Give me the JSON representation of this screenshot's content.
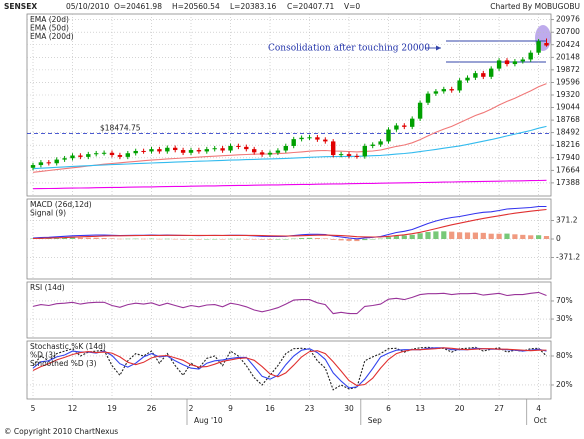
{
  "chart_data": [
    {
      "type": "candlestick",
      "title": "SENSEX",
      "header": [
        "05/10/2010",
        "O=20461.98",
        "H=20560.54",
        "L=20383.16",
        "C=20407.71",
        "V=0"
      ],
      "credit": "Charted By MOBUGOBU",
      "footer": "© Copyright 2010 ChartNexus",
      "categories": [
        "5",
        null,
        null,
        null,
        null,
        "12",
        null,
        null,
        null,
        null,
        "19",
        null,
        null,
        null,
        null,
        "26",
        null,
        null,
        null,
        null,
        "2",
        null,
        null,
        null,
        null,
        "9",
        null,
        null,
        null,
        null,
        "16",
        null,
        null,
        null,
        null,
        "23",
        null,
        null,
        null,
        null,
        "30",
        null,
        null,
        null,
        null,
        "6",
        null,
        null,
        null,
        "13",
        null,
        null,
        null,
        null,
        "20",
        null,
        null,
        null,
        null,
        "27",
        null,
        null,
        null,
        null,
        "4",
        null
      ],
      "months": [
        null,
        null,
        null,
        null,
        null,
        null,
        null,
        null,
        null,
        null,
        null,
        null,
        null,
        null,
        null,
        null,
        null,
        null,
        null,
        null,
        "Aug '10",
        null,
        null,
        null,
        null,
        null,
        null,
        null,
        null,
        null,
        null,
        null,
        null,
        null,
        null,
        null,
        null,
        null,
        null,
        null,
        null,
        null,
        "Sep",
        null,
        null,
        null,
        null,
        null,
        null,
        null,
        null,
        null,
        null,
        null,
        null,
        null,
        null,
        null,
        null,
        null,
        null,
        null,
        null,
        "Oct",
        null,
        null
      ],
      "open": [
        17720,
        17780,
        17840,
        17820,
        17900,
        17930,
        17990,
        17960,
        18020,
        18040,
        18050,
        18000,
        17960,
        18040,
        18090,
        18080,
        18130,
        18080,
        18160,
        18110,
        18050,
        18110,
        18080,
        18130,
        18150,
        18100,
        18200,
        18180,
        18130,
        18060,
        18010,
        18050,
        18100,
        18200,
        18350,
        18380,
        18390,
        18340,
        18300,
        18000,
        18020,
        17980,
        17970,
        18200,
        18230,
        18300,
        18560,
        18650,
        18620,
        18800,
        19150,
        19350,
        19400,
        19450,
        19420,
        19640,
        19700,
        19800,
        19720,
        19900,
        20080,
        20000,
        20060,
        20100,
        20250,
        20461.98
      ],
      "high": [
        17830,
        17890,
        17890,
        17950,
        17980,
        18040,
        18040,
        18070,
        18090,
        18100,
        18100,
        18050,
        18090,
        18140,
        18140,
        18180,
        18180,
        18210,
        18210,
        18160,
        18160,
        18160,
        18180,
        18200,
        18200,
        18250,
        18250,
        18230,
        18180,
        18110,
        18100,
        18150,
        18250,
        18400,
        18430,
        18440,
        18440,
        18390,
        18350,
        18070,
        18070,
        18030,
        18250,
        18280,
        18350,
        18610,
        18700,
        18700,
        18850,
        19200,
        19400,
        19450,
        19500,
        19500,
        19690,
        19750,
        19850,
        19850,
        19950,
        20130,
        20130,
        20110,
        20150,
        20300,
        20550,
        20560.54
      ],
      "low": [
        17670,
        17730,
        17770,
        17770,
        17850,
        17880,
        17910,
        17910,
        17970,
        17990,
        17950,
        17910,
        17910,
        17990,
        18030,
        18030,
        18030,
        18030,
        18060,
        18000,
        18000,
        18030,
        18030,
        18080,
        18050,
        18050,
        18130,
        18080,
        18010,
        17960,
        17960,
        18000,
        18050,
        18150,
        18300,
        18330,
        18290,
        18250,
        17950,
        17950,
        17930,
        17920,
        17920,
        18150,
        18180,
        18250,
        18510,
        18570,
        18570,
        18750,
        19100,
        19300,
        19350,
        19370,
        19370,
        19590,
        19650,
        19670,
        19670,
        19850,
        19950,
        19950,
        20010,
        20050,
        20200,
        20383.16
      ],
      "close": [
        17780,
        17840,
        17820,
        17900,
        17930,
        17990,
        17960,
        18020,
        18040,
        18050,
        18000,
        17960,
        18040,
        18090,
        18080,
        18130,
        18080,
        18160,
        18110,
        18050,
        18110,
        18080,
        18130,
        18150,
        18100,
        18200,
        18180,
        18130,
        18060,
        18010,
        18050,
        18100,
        18200,
        18350,
        18380,
        18390,
        18340,
        18300,
        18000,
        18020,
        17980,
        17970,
        18200,
        18230,
        18300,
        18560,
        18650,
        18620,
        18800,
        19150,
        19350,
        19400,
        19450,
        19420,
        19640,
        19700,
        19800,
        19720,
        19900,
        20080,
        20000,
        20060,
        20100,
        20250,
        20500,
        20407.71
      ],
      "up_color": "#00a000",
      "down_color": "#e00000",
      "series": [
        {
          "name": "EMA (20d)",
          "color": "#f07878",
          "values": [
            17620,
            17640,
            17660,
            17680,
            17700,
            17720,
            17740,
            17760,
            17780,
            17800,
            17815,
            17830,
            17845,
            17860,
            17875,
            17890,
            17900,
            17915,
            17925,
            17935,
            17945,
            17955,
            17965,
            17975,
            17985,
            17995,
            18005,
            18012,
            18018,
            18022,
            18026,
            18032,
            18040,
            18055,
            18070,
            18085,
            18095,
            18100,
            18090,
            18085,
            18078,
            18070,
            18080,
            18090,
            18110,
            18150,
            18190,
            18220,
            18270,
            18340,
            18420,
            18500,
            18570,
            18630,
            18710,
            18790,
            18870,
            18930,
            19010,
            19100,
            19180,
            19250,
            19330,
            19410,
            19500,
            19570
          ]
        },
        {
          "name": "EMA (50d)",
          "color": "#33bbee",
          "values": [
            17700,
            17710,
            17720,
            17730,
            17740,
            17750,
            17758,
            17766,
            17774,
            17782,
            17790,
            17797,
            17804,
            17811,
            17818,
            17825,
            17832,
            17839,
            17846,
            17852,
            17858,
            17864,
            17870,
            17876,
            17882,
            17888,
            17894,
            17900,
            17905,
            17910,
            17915,
            17920,
            17926,
            17934,
            17942,
            17950,
            17958,
            17964,
            17966,
            17968,
            17970,
            17972,
            17978,
            17985,
            17993,
            18005,
            18020,
            18035,
            18052,
            18075,
            18100,
            18125,
            18150,
            18175,
            18200,
            18235,
            18270,
            18305,
            18340,
            18380,
            18420,
            18460,
            18500,
            18540,
            18590,
            18630
          ]
        },
        {
          "name": "EMA (200d)",
          "color": "#ee00ee",
          "values": [
            17260,
            17263,
            17265,
            17268,
            17271,
            17274,
            17276,
            17279,
            17282,
            17285,
            17288,
            17290,
            17293,
            17296,
            17299,
            17301,
            17304,
            17307,
            17310,
            17312,
            17315,
            17318,
            17321,
            17323,
            17326,
            17329,
            17332,
            17334,
            17337,
            17340,
            17343,
            17345,
            17348,
            17351,
            17354,
            17356,
            17359,
            17362,
            17365,
            17367,
            17370,
            17373,
            17376,
            17378,
            17381,
            17384,
            17387,
            17390,
            17393,
            17396,
            17399,
            17402,
            17405,
            17408,
            17411,
            17414,
            17417,
            17420,
            17423,
            17426,
            17429,
            17432,
            17435,
            17438,
            17441,
            17444
          ]
        }
      ],
      "level": {
        "value": 18474.75,
        "label": "$18474.75"
      },
      "note": "Consolidation after touching 20000",
      "ylim": [
        17100,
        21100
      ],
      "yticks": [
        20976,
        20700,
        20424,
        20148,
        19872,
        19596,
        19320,
        19044,
        18768,
        18492,
        18216,
        17940,
        17664,
        17388
      ],
      "grid": true
    },
    {
      "type": "macd",
      "series": [
        {
          "name": "MACD (26d,12d)",
          "color": "#3333ee",
          "values": [
            20,
            30,
            35,
            45,
            55,
            65,
            70,
            75,
            80,
            80,
            75,
            70,
            72,
            75,
            75,
            78,
            75,
            78,
            75,
            70,
            70,
            68,
            70,
            72,
            70,
            75,
            75,
            72,
            65,
            55,
            50,
            50,
            55,
            70,
            85,
            95,
            95,
            90,
            60,
            40,
            20,
            5,
            20,
            35,
            50,
            90,
            130,
            155,
            190,
            250,
            310,
            360,
            400,
            430,
            450,
            480,
            510,
            535,
            545,
            570,
            600,
            610,
            620,
            630,
            650,
            650
          ]
        },
        {
          "name": "Signal (9)",
          "color": "#e03030",
          "values": [
            10,
            14,
            18,
            23,
            29,
            36,
            43,
            49,
            55,
            60,
            63,
            65,
            66,
            68,
            70,
            71,
            72,
            73,
            73,
            73,
            72,
            71,
            71,
            71,
            71,
            72,
            72,
            72,
            71,
            68,
            64,
            61,
            60,
            62,
            66,
            72,
            76,
            79,
            75,
            68,
            58,
            47,
            42,
            40,
            42,
            52,
            68,
            85,
            106,
            135,
            170,
            208,
            246,
            283,
            316,
            349,
            381,
            412,
            439,
            465,
            492,
            516,
            537,
            556,
            575,
            590
          ]
        }
      ],
      "histogram": {
        "up": "#77c877",
        "down": "#f09a80",
        "values": [
          10,
          16,
          17,
          22,
          26,
          29,
          27,
          26,
          25,
          20,
          12,
          5,
          6,
          7,
          5,
          7,
          3,
          5,
          2,
          -3,
          -2,
          -3,
          -1,
          1,
          -1,
          3,
          3,
          0,
          -6,
          -13,
          -14,
          -11,
          -5,
          8,
          19,
          23,
          19,
          11,
          -15,
          -28,
          -38,
          -42,
          -22,
          -5,
          8,
          38,
          62,
          70,
          84,
          115,
          140,
          152,
          154,
          147,
          134,
          131,
          129,
          123,
          106,
          105,
          108,
          94,
          83,
          74,
          75,
          60
        ]
      },
      "ylim": [
        -800,
        800
      ],
      "yticks": [
        371.2,
        0,
        -371.2
      ],
      "grid": true
    },
    {
      "type": "line",
      "series": [
        {
          "name": "RSI (14d)",
          "color": "#993399",
          "values": [
            58,
            62,
            60,
            64,
            65,
            67,
            63,
            66,
            67,
            67,
            60,
            56,
            62,
            65,
            63,
            66,
            60,
            65,
            60,
            55,
            60,
            57,
            61,
            62,
            57,
            65,
            62,
            57,
            50,
            46,
            50,
            55,
            63,
            72,
            73,
            73,
            66,
            62,
            42,
            45,
            42,
            42,
            58,
            60,
            63,
            74,
            76,
            73,
            78,
            84,
            86,
            86,
            87,
            84,
            86,
            86,
            87,
            83,
            85,
            87,
            82,
            84,
            84,
            87,
            89,
            82
          ]
        }
      ],
      "ylim": [
        -12,
        112
      ],
      "yticks": [
        {
          "value": 70,
          "label": "70%"
        },
        {
          "value": 30,
          "label": "30%"
        }
      ],
      "grid": true
    },
    {
      "type": "line",
      "series": [
        {
          "name": "Stochastic %K (14d)",
          "color": "#222222",
          "dash": "2,1.5",
          "values": [
            60,
            80,
            70,
            85,
            90,
            95,
            80,
            88,
            90,
            92,
            60,
            40,
            70,
            85,
            80,
            90,
            65,
            85,
            60,
            40,
            65,
            55,
            75,
            80,
            60,
            90,
            80,
            60,
            35,
            20,
            40,
            60,
            85,
            95,
            96,
            94,
            70,
            55,
            10,
            20,
            12,
            15,
            70,
            78,
            85,
            95,
            96,
            88,
            94,
            97,
            98,
            96,
            96,
            88,
            95,
            96,
            98,
            90,
            94,
            97,
            88,
            92,
            90,
            95,
            96,
            80
          ]
        },
        {
          "name": "%D (3)",
          "color": "#3344ee",
          "values": [
            55,
            68,
            70,
            78,
            82,
            90,
            88,
            88,
            86,
            90,
            81,
            64,
            57,
            65,
            78,
            85,
            78,
            80,
            70,
            62,
            55,
            53,
            65,
            70,
            72,
            75,
            77,
            77,
            58,
            38,
            32,
            40,
            62,
            80,
            92,
            95,
            87,
            73,
            45,
            28,
            14,
            16,
            32,
            54,
            78,
            86,
            92,
            93,
            93,
            93,
            96,
            97,
            97,
            93,
            93,
            93,
            96,
            95,
            94,
            94,
            93,
            92,
            90,
            92,
            94,
            90
          ]
        },
        {
          "name": "Smoothed %D (3)",
          "color": "#e03030",
          "values": [
            50,
            58,
            64,
            72,
            77,
            83,
            87,
            89,
            87,
            88,
            86,
            78,
            67,
            62,
            67,
            76,
            80,
            81,
            76,
            71,
            62,
            57,
            58,
            63,
            69,
            72,
            75,
            76,
            71,
            58,
            43,
            37,
            45,
            61,
            78,
            89,
            91,
            85,
            68,
            49,
            29,
            19,
            21,
            34,
            55,
            73,
            85,
            90,
            93,
            93,
            94,
            95,
            97,
            96,
            94,
            93,
            94,
            95,
            95,
            94,
            94,
            93,
            92,
            91,
            92,
            92
          ]
        }
      ],
      "ylim": [
        -9,
        111
      ],
      "yticks": [
        {
          "value": 80,
          "label": "80%"
        },
        {
          "value": 20,
          "label": "20%"
        }
      ],
      "grid": true
    }
  ]
}
